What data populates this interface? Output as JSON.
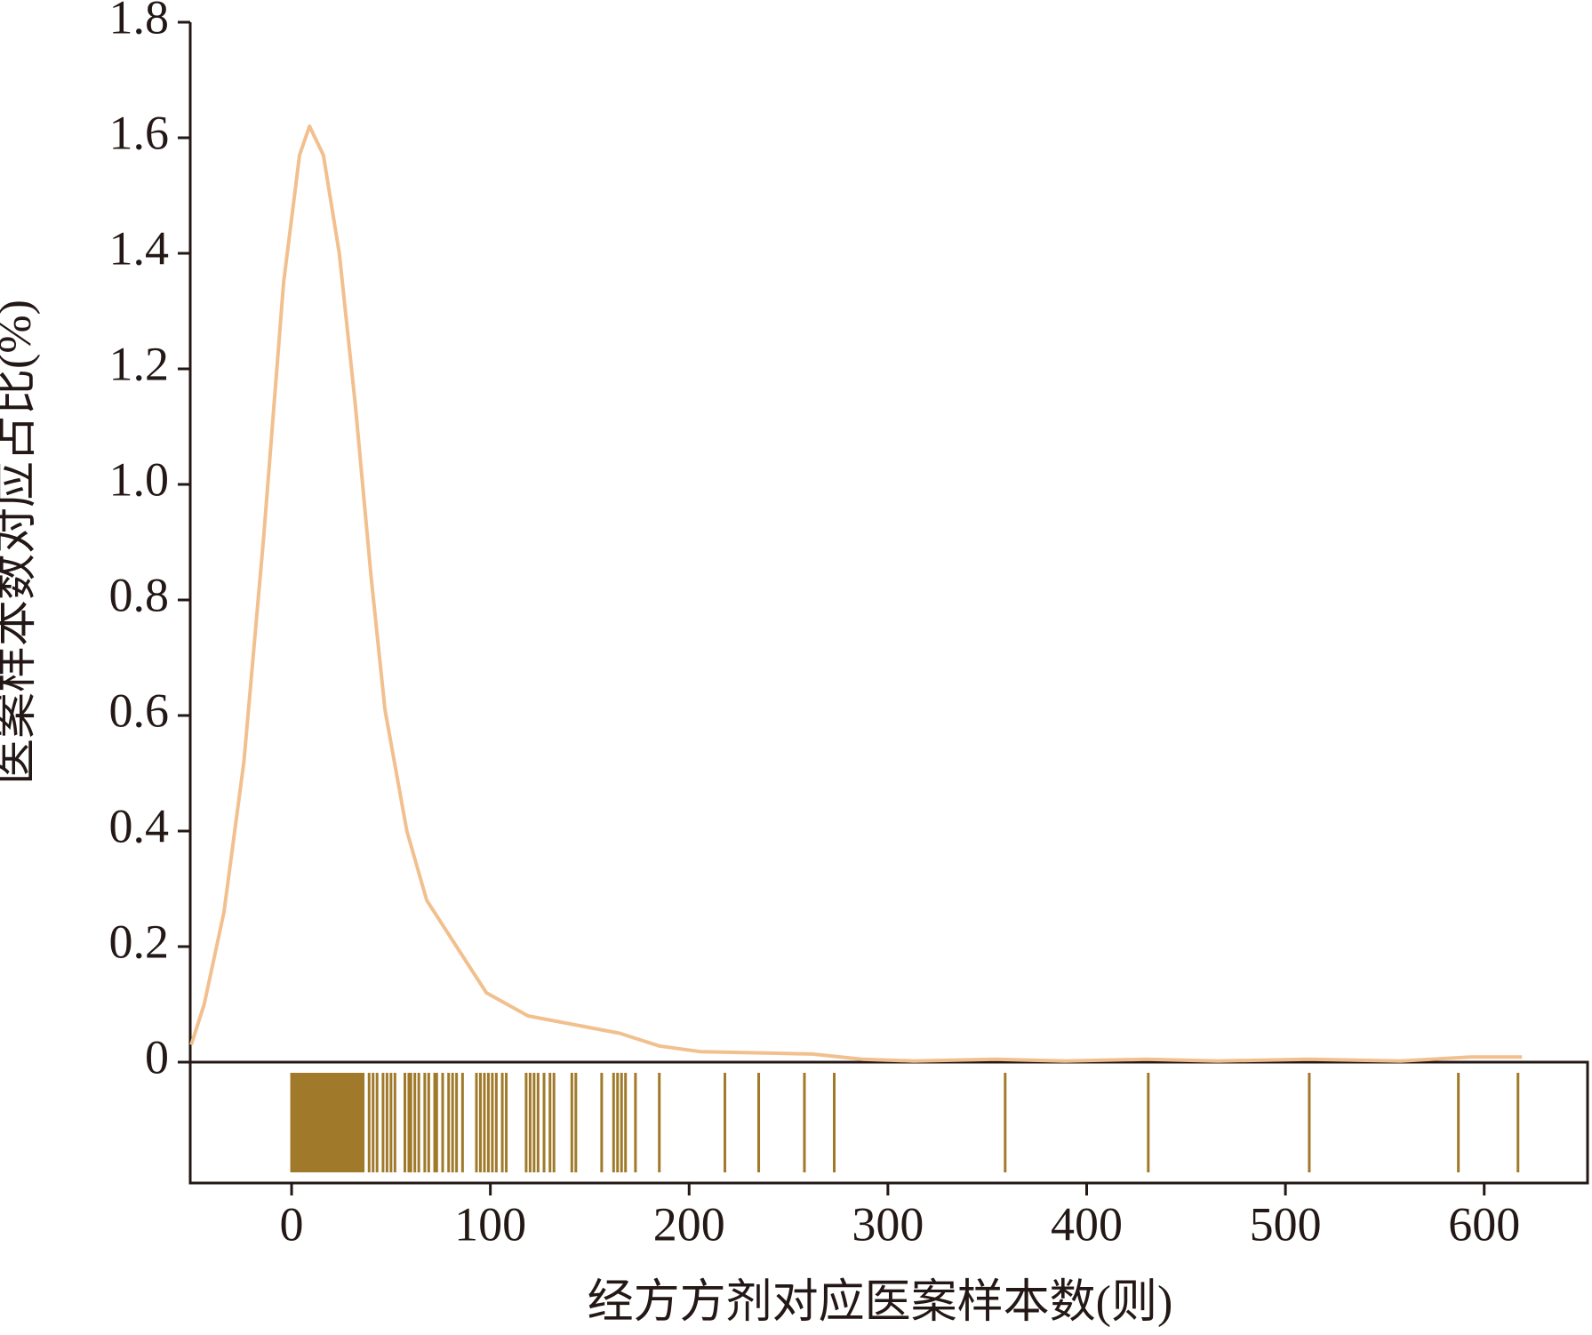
{
  "chart_data": {
    "type": "line",
    "ylabel": "医案样本数对应占比(%)",
    "xlabel": "经方方剂对应医案样本数(则)",
    "x": [
      -50.5,
      -44,
      -34,
      -24,
      -14,
      -4,
      4,
      9,
      16,
      24,
      32,
      40,
      47,
      58,
      68,
      83,
      98,
      119,
      139,
      165,
      185,
      206,
      236,
      262,
      287,
      313,
      354,
      389,
      430,
      466,
      512,
      558,
      593,
      619
    ],
    "values": [
      0.03,
      0.1,
      0.26,
      0.52,
      0.91,
      1.35,
      1.57,
      1.62,
      1.57,
      1.4,
      1.14,
      0.84,
      0.61,
      0.4,
      0.28,
      0.2,
      0.12,
      0.08,
      0.067,
      0.05,
      0.028,
      0.018,
      0.016,
      0.014,
      0.005,
      0.002,
      0.005,
      0.002,
      0.005,
      0.002,
      0.005,
      0.002,
      0.009,
      0.009
    ],
    "color": "#f2c08f",
    "rug": [
      0,
      1,
      2,
      3,
      4,
      5,
      6,
      7,
      8,
      9,
      10,
      11,
      12,
      13,
      14,
      15,
      16,
      17,
      18,
      19,
      20,
      21,
      22,
      23,
      24,
      25,
      26,
      27,
      28,
      29,
      30,
      31,
      32,
      33,
      34,
      35,
      36,
      39,
      41,
      43,
      46,
      48,
      50,
      52,
      57,
      59,
      60,
      62,
      64,
      67,
      69,
      72,
      73,
      76,
      79,
      81,
      83,
      86,
      93,
      95,
      97,
      99,
      101,
      103,
      106,
      108,
      118,
      120,
      122,
      124,
      127,
      130,
      132,
      141,
      143,
      156,
      162,
      164,
      166,
      168,
      173,
      185,
      218,
      235,
      258,
      273,
      359,
      431,
      512,
      587,
      617
    ],
    "rug_color": "#a07a2a",
    "xlim": [
      -51,
      652
    ],
    "xticks": [
      0,
      100,
      200,
      300,
      400,
      500,
      600
    ],
    "ylim": [
      0,
      1.8
    ],
    "yticks": [
      0,
      0.2,
      0.4,
      0.6,
      0.8,
      {
        "value": 1,
        "label": "1.0"
      },
      1.2,
      1.4,
      1.6,
      1.8
    ]
  }
}
